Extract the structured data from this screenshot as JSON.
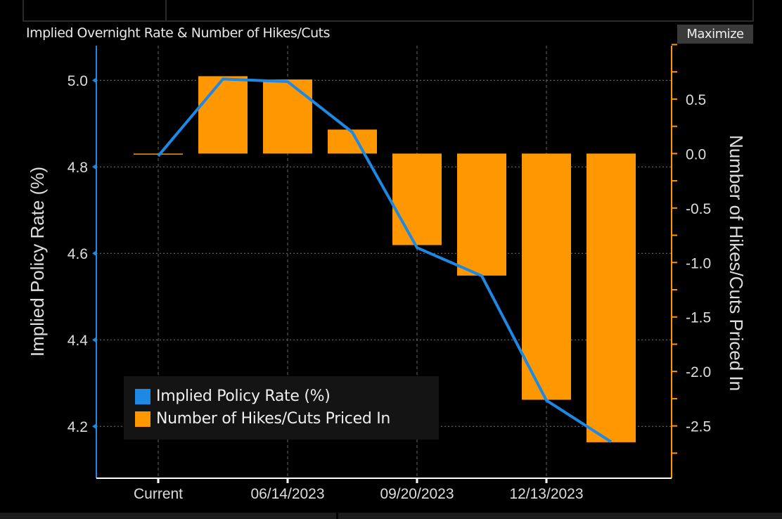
{
  "header": {
    "title": "Implied Overnight Rate & Number of Hikes/Cuts",
    "maximize_label": "Maximize"
  },
  "chart_data": {
    "type": "bar+line",
    "title": "Implied Overnight Rate & Number of Hikes/Cuts",
    "categories": [
      "Current",
      "",
      "06/14/2023",
      "",
      "09/20/2023",
      "",
      "12/13/2023",
      ""
    ],
    "x_tick_labels": [
      "Current",
      "06/14/2023",
      "09/20/2023",
      "12/13/2023"
    ],
    "series": [
      {
        "name": "Implied Policy Rate (%)",
        "type": "line",
        "axis": "left",
        "color": "#1e88e5",
        "values": [
          4.825,
          5.003,
          4.997,
          4.88,
          4.613,
          4.548,
          4.26,
          4.164
        ]
      },
      {
        "name": "Number of Hikes/Cuts Priced In",
        "type": "bar",
        "axis": "right",
        "color": "#ff9800",
        "values": [
          0.0,
          0.71,
          0.68,
          0.22,
          -0.84,
          -1.12,
          -2.26,
          -2.65
        ]
      }
    ],
    "left_axis": {
      "label": "Implied Policy Rate (%)",
      "ylim": [
        4.08,
        5.08
      ],
      "ticks": [
        "4.2",
        "4.4",
        "4.6",
        "4.8",
        "5.0"
      ],
      "tick_values": [
        4.2,
        4.4,
        4.6,
        4.8,
        5.0
      ],
      "color": "#1e88e5"
    },
    "right_axis": {
      "label": "Number of Hikes/Cuts Priced In",
      "ylim": [
        -2.98,
        0.99
      ],
      "ticks": [
        "0.5",
        "0.0",
        "-0.5",
        "-1.0",
        "-1.5",
        "-2.0",
        "-2.5"
      ],
      "tick_values": [
        0.5,
        0.0,
        -0.5,
        -1.0,
        -1.5,
        -2.0,
        -2.5
      ],
      "color": "#ff9800"
    },
    "grid": true,
    "legend": "bottom-left"
  }
}
